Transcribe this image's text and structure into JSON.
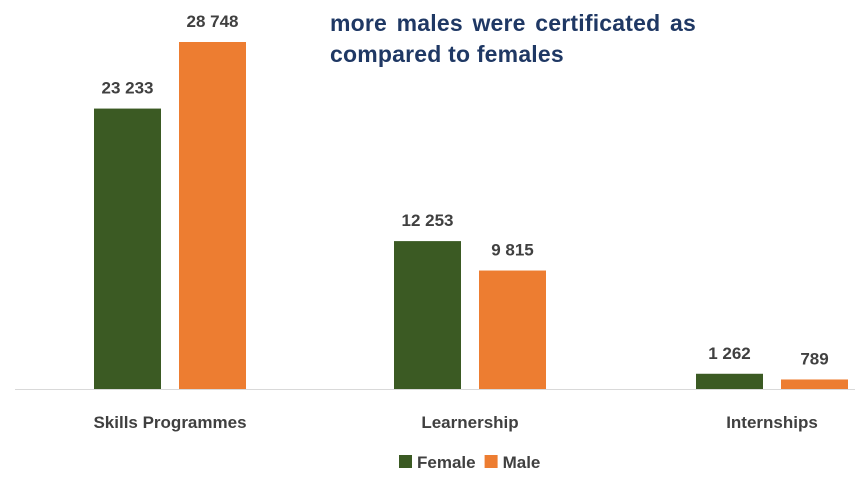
{
  "headline": {
    "line1": "more males were certificated as",
    "line2": "compared to females"
  },
  "chart_data": {
    "type": "bar",
    "categories": [
      "Skills Programmes",
      "Learnership",
      "Internships"
    ],
    "series": [
      {
        "name": "Female",
        "color": "#3b5a23",
        "values": [
          23233,
          12253,
          1262
        ],
        "labels": [
          "23 233",
          "12 253",
          "1 262"
        ]
      },
      {
        "name": "Male",
        "color": "#ed7d31",
        "values": [
          28748,
          9815,
          789
        ],
        "labels": [
          "28 748",
          "9 815",
          "789"
        ]
      }
    ],
    "title": "",
    "xlabel": "",
    "ylabel": "",
    "ylim": [
      0,
      28748
    ],
    "grid": false,
    "legend_position": "bottom-center"
  }
}
